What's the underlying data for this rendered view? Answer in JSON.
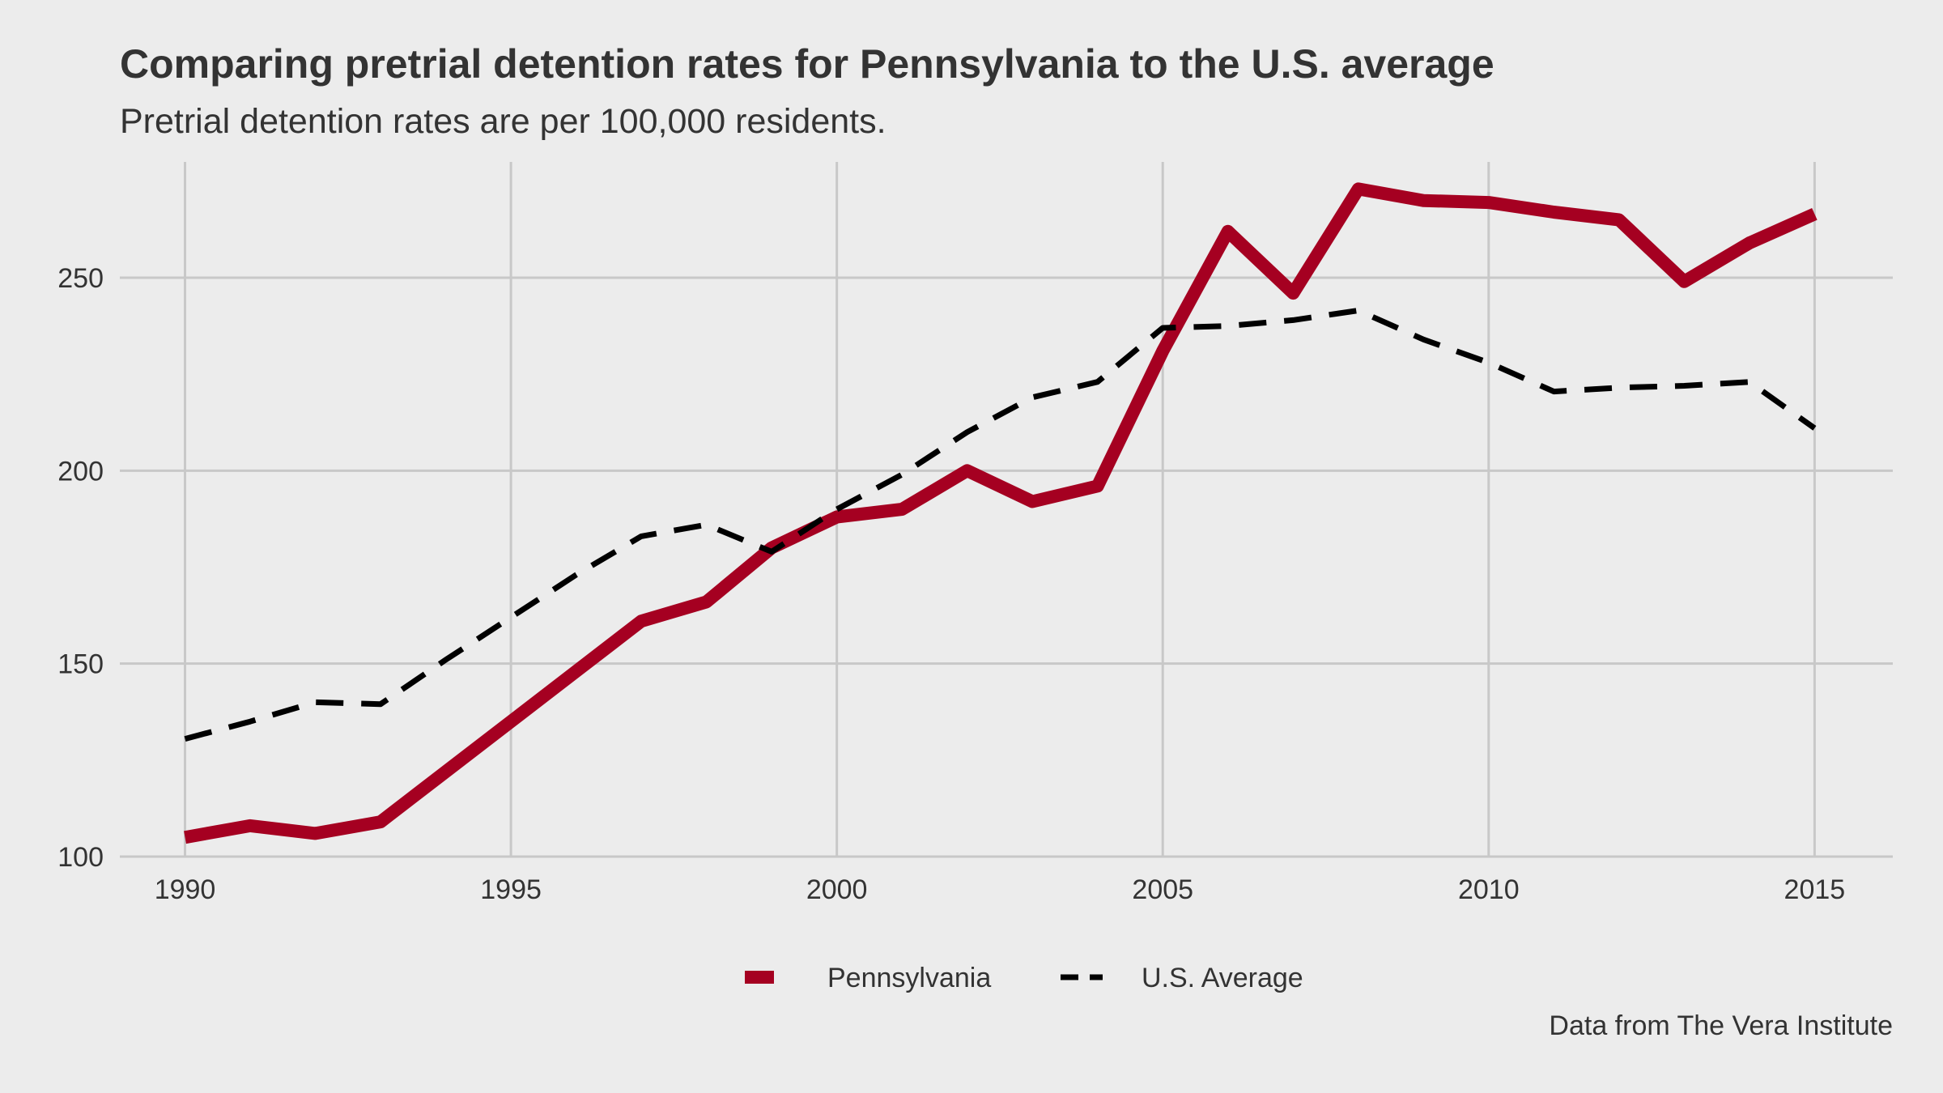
{
  "chart_data": {
    "type": "line",
    "title": "Comparing pretrial detention rates for Pennsylvania to the U.S. average",
    "subtitle": "Pretrial detention rates are per 100,000 residents.",
    "caption": "Data from The Vera Institute",
    "xlabel": "",
    "ylabel": "",
    "xlim": [
      1989,
      2016.2
    ],
    "ylim": [
      100,
      280
    ],
    "x_ticks": [
      1990,
      1995,
      2000,
      2005,
      2010,
      2015
    ],
    "y_ticks": [
      100,
      150,
      200,
      250
    ],
    "grid": true,
    "legend_position": "bottom",
    "x": [
      1990,
      1991,
      1992,
      1993,
      1994,
      1995,
      1996,
      1997,
      1998,
      1999,
      2000,
      2001,
      2002,
      2003,
      2004,
      2005,
      2006,
      2007,
      2008,
      2009,
      2010,
      2011,
      2012,
      2013,
      2014,
      2015
    ],
    "series": [
      {
        "name": "Pennsylvania",
        "color": "#a50021",
        "style": "solid",
        "values": [
          105,
          108,
          106,
          109,
          122,
          135,
          148,
          161,
          166,
          180,
          188,
          190,
          200,
          192,
          196,
          231,
          262,
          246,
          273,
          270,
          269.5,
          267,
          265,
          249,
          259,
          266.5
        ]
      },
      {
        "name": "U.S. Average",
        "color": "#000000",
        "style": "dashed",
        "values": [
          130.5,
          135,
          140,
          139.5,
          151,
          162,
          173,
          183,
          186,
          179,
          190,
          199,
          210,
          219,
          223,
          237,
          237.5,
          239,
          241.5,
          234,
          228,
          220.5,
          221.5,
          222,
          223,
          211
        ]
      }
    ]
  }
}
